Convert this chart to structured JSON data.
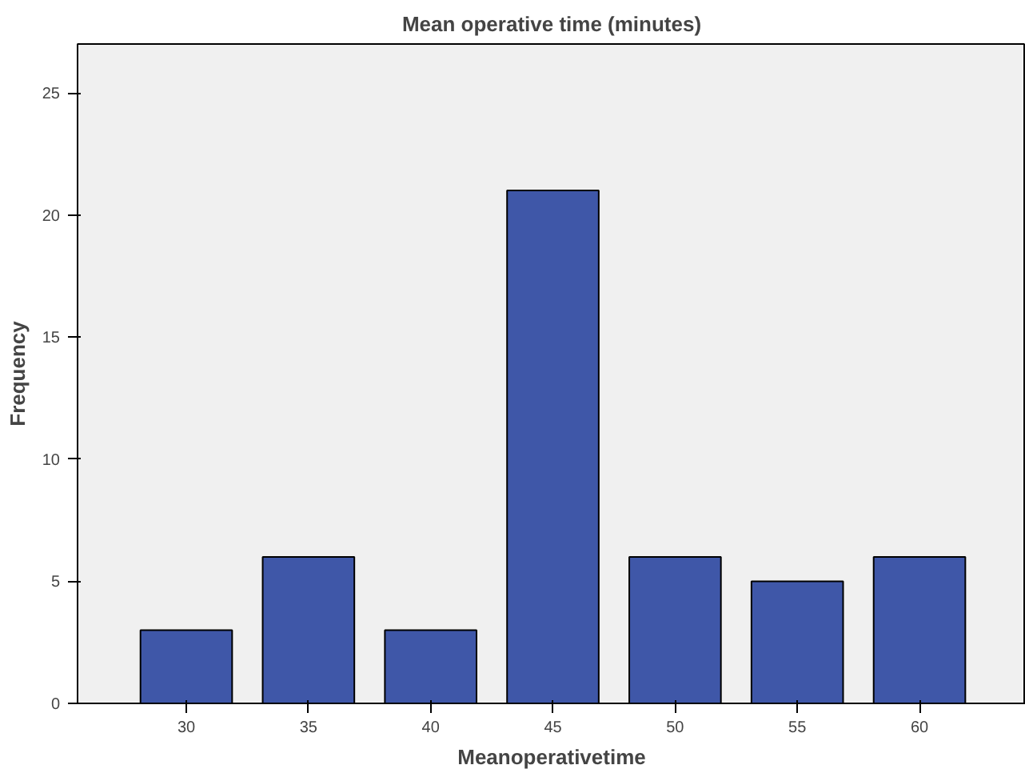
{
  "chart_data": {
    "type": "bar",
    "title": "Mean operative time (minutes)",
    "xlabel": "Meanoperativetime",
    "ylabel": "Frequency",
    "categories": [
      "30",
      "35",
      "40",
      "45",
      "50",
      "55",
      "60"
    ],
    "values": [
      3,
      6,
      3,
      21,
      6,
      5,
      6
    ],
    "color": "#3f57a8",
    "ylim": [
      0,
      27
    ],
    "yticks": [
      0,
      5,
      10,
      15,
      20,
      25
    ],
    "grid": false
  }
}
